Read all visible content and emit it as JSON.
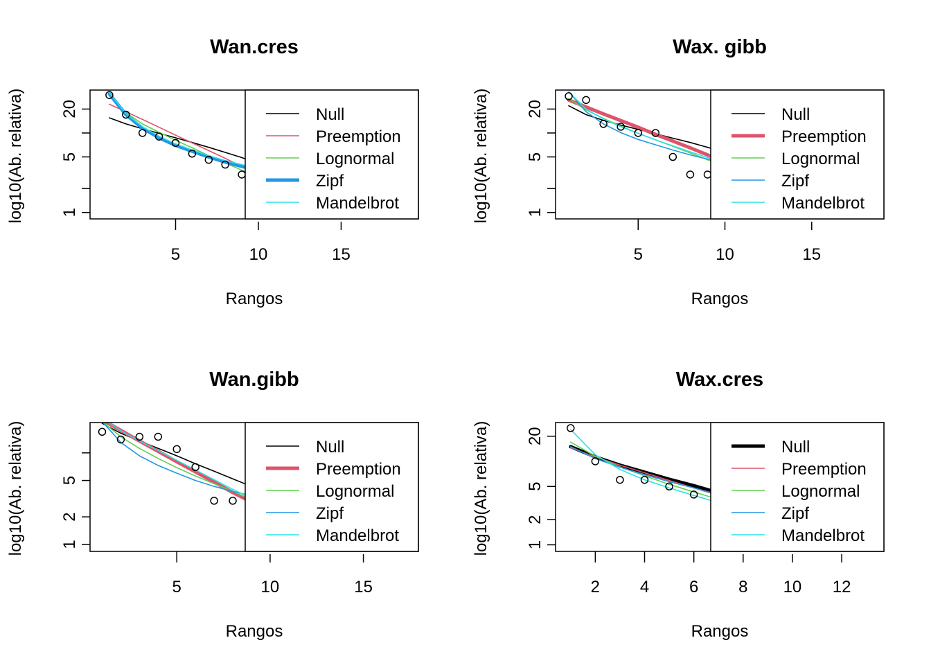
{
  "colors": {
    "Null": "#000000",
    "Preemption": "#DF536B",
    "Lognormal": "#61D04F",
    "Zipf": "#2297E6",
    "Mandelbrot": "#28E2E5"
  },
  "chart_data": [
    {
      "type": "line",
      "title": "Wan.cres",
      "xlabel": "Rangos",
      "ylabel": "log10(Ab. relativa)",
      "log_y": true,
      "xlim": [
        0,
        19.5
      ],
      "ylim": [
        0.9,
        32
      ],
      "xticks": [
        5,
        10,
        15
      ],
      "yticks": [
        1,
        2,
        5,
        10,
        20
      ],
      "yticklabels": [
        "1",
        "",
        "5",
        "",
        "20"
      ],
      "legend": [
        "Null",
        "Preemption",
        "Lognormal",
        "Zipf",
        "Mandelbrot"
      ],
      "highlight": "Zipf",
      "points": {
        "x": [
          1,
          2,
          3,
          4,
          5,
          6,
          7,
          8,
          9
        ],
        "y": [
          30,
          17,
          10,
          9,
          7.5,
          5.5,
          4.6,
          4.0,
          3.0
        ]
      },
      "series": [
        {
          "name": "Null",
          "x": [
            1,
            2,
            3,
            4,
            5,
            6,
            7,
            8,
            9,
            10
          ],
          "y": [
            15.5,
            13,
            11.3,
            9.9,
            8.7,
            7.6,
            6.6,
            5.7,
            4.9,
            4.1
          ]
        },
        {
          "name": "Preemption",
          "x": [
            1,
            2,
            3,
            4,
            5,
            6,
            7,
            8,
            9,
            10
          ],
          "y": [
            23,
            18.5,
            14.8,
            11.8,
            9.4,
            7.5,
            6.0,
            4.8,
            3.8,
            3.0
          ]
        },
        {
          "name": "Lognormal",
          "x": [
            1,
            2,
            3,
            4,
            5,
            6,
            7,
            8,
            9,
            10
          ],
          "y": [
            30,
            18,
            13,
            10.2,
            8.1,
            6.5,
            5.2,
            4.2,
            3.4,
            2.8
          ]
        },
        {
          "name": "Zipf",
          "x": [
            1,
            2,
            3,
            4,
            5,
            6,
            7,
            8,
            9,
            10
          ],
          "y": [
            31,
            17,
            11.5,
            8.7,
            7,
            5.9,
            5.0,
            4.3,
            3.8,
            3.4
          ]
        },
        {
          "name": "Mandelbrot",
          "x": [
            1,
            2,
            3,
            4,
            5,
            6,
            7,
            8,
            9,
            10
          ],
          "y": [
            32,
            17.5,
            12,
            9.1,
            7.3,
            6.1,
            5.2,
            4.5,
            4.0,
            3.5
          ]
        }
      ]
    },
    {
      "type": "line",
      "title": "Wax. gibb",
      "xlabel": "Rangos",
      "ylabel": "log10(Ab. relativa)",
      "log_y": true,
      "xlim": [
        0.4,
        19
      ],
      "ylim": [
        0.9,
        32
      ],
      "xticks": [
        5,
        10,
        15
      ],
      "yticks": [
        1,
        2,
        5,
        10,
        20
      ],
      "yticklabels": [
        "1",
        "",
        "5",
        "",
        "20"
      ],
      "legend": [
        "Null",
        "Preemption",
        "Lognormal",
        "Zipf",
        "Mandelbrot"
      ],
      "highlight": "Preemption",
      "points": {
        "x": [
          1,
          2,
          3,
          4,
          5,
          6,
          7,
          8,
          9
        ],
        "y": [
          29,
          26,
          13,
          12,
          10,
          10,
          5,
          3,
          3
        ]
      },
      "series": [
        {
          "name": "Null",
          "x": [
            1,
            2,
            3,
            4,
            5,
            6,
            7,
            8,
            9,
            10
          ],
          "y": [
            22,
            17,
            14.4,
            12.6,
            11.1,
            9.8,
            8.6,
            7.6,
            6.6,
            5.7
          ]
        },
        {
          "name": "Preemption",
          "x": [
            1,
            2,
            3,
            4,
            5,
            6,
            7,
            8,
            9,
            10
          ],
          "y": [
            26,
            21.2,
            17.4,
            14.3,
            11.8,
            9.6,
            7.9,
            6.5,
            5.3,
            4.3
          ]
        },
        {
          "name": "Lognormal",
          "x": [
            1,
            2,
            3,
            4,
            5,
            6,
            7,
            8,
            9,
            10
          ],
          "y": [
            27,
            19.5,
            15.3,
            12.2,
            9.9,
            8.2,
            6.8,
            5.6,
            4.6,
            3.8
          ]
        },
        {
          "name": "Zipf",
          "x": [
            1,
            2,
            3,
            4,
            5,
            6,
            7,
            8,
            9,
            10
          ],
          "y": [
            33,
            18.5,
            13,
            10.1,
            8.3,
            7.1,
            6.1,
            5.3,
            4.7,
            4.2
          ]
        },
        {
          "name": "Mandelbrot",
          "x": [
            1,
            2,
            3,
            4,
            5,
            6,
            7,
            8,
            9,
            10
          ],
          "y": [
            33,
            20,
            15,
            12,
            9.9,
            8.2,
            6.9,
            5.8,
            4.9,
            4.2
          ]
        }
      ]
    },
    {
      "type": "line",
      "title": "Wan.gibb",
      "xlabel": "Rangos",
      "ylabel": "log10(Ab. relativa)",
      "log_y": true,
      "xlim": [
        0.5,
        17.8
      ],
      "ylim": [
        0.9,
        20
      ],
      "xticks": [
        5,
        10,
        15
      ],
      "yticks": [
        1,
        2,
        5,
        10
      ],
      "yticklabels": [
        "1",
        "2",
        "5",
        ""
      ],
      "legend": [
        "Null",
        "Preemption",
        "Lognormal",
        "Zipf",
        "Mandelbrot"
      ],
      "highlight": "Preemption",
      "points": {
        "x": [
          1,
          2,
          3,
          4,
          5,
          6,
          7,
          8
        ],
        "y": [
          17,
          14,
          15,
          15,
          11,
          7,
          3,
          3
        ]
      },
      "series": [
        {
          "name": "Null",
          "x": [
            1,
            2,
            3,
            4,
            5,
            6,
            7,
            8,
            9
          ],
          "y": [
            21,
            16.4,
            13.5,
            11.2,
            9.3,
            7.6,
            6.3,
            5.2,
            4.3
          ]
        },
        {
          "name": "Preemption",
          "x": [
            1,
            2,
            3,
            4,
            5,
            6,
            7,
            8,
            9
          ],
          "y": [
            23,
            17.6,
            13.5,
            10.4,
            8.0,
            6.2,
            4.8,
            3.7,
            2.9
          ]
        },
        {
          "name": "Lognormal",
          "x": [
            1,
            2,
            3,
            4,
            5,
            6,
            7,
            8,
            9
          ],
          "y": [
            22,
            15,
            11.2,
            8.7,
            6.9,
            5.6,
            4.6,
            3.8,
            3.1
          ]
        },
        {
          "name": "Zipf",
          "x": [
            1,
            2,
            3,
            4,
            5,
            6,
            7,
            8,
            9
          ],
          "y": [
            22,
            13,
            9.3,
            7.3,
            6.0,
            5.0,
            4.3,
            3.8,
            3.4
          ]
        },
        {
          "name": "Mandelbrot",
          "x": [
            1,
            2,
            3,
            4,
            5,
            6,
            7,
            8,
            9
          ],
          "y": [
            24,
            17.5,
            13.5,
            10.6,
            8.3,
            6.5,
            5.1,
            4.0,
            3.2
          ]
        }
      ]
    },
    {
      "type": "line",
      "title": "Wax.cres",
      "xlabel": "Rangos",
      "ylabel": "log10(Ab. relativa)",
      "log_y": true,
      "xlim": [
        0.5,
        13.6
      ],
      "ylim": [
        0.9,
        27
      ],
      "xticks": [
        2,
        4,
        6,
        8,
        10,
        12
      ],
      "yticks": [
        1,
        2,
        5,
        20
      ],
      "yticklabels": [
        "1",
        "2",
        "5",
        "20"
      ],
      "legend": [
        "Null",
        "Preemption",
        "Lognormal",
        "Zipf",
        "Mandelbrot"
      ],
      "highlight": "Null",
      "points": {
        "x": [
          1,
          2,
          3,
          4,
          5,
          6
        ],
        "y": [
          25,
          10,
          6,
          6,
          5,
          4
        ]
      },
      "series": [
        {
          "name": "Null",
          "x": [
            1,
            2,
            3,
            4,
            5,
            6,
            7
          ],
          "y": [
            15,
            11.3,
            9.0,
            7.4,
            6.1,
            5.1,
            4.2
          ]
        },
        {
          "name": "Preemption",
          "x": [
            1,
            2,
            3,
            4,
            5,
            6,
            7
          ],
          "y": [
            14.5,
            11.3,
            9.0,
            7.3,
            5.9,
            4.8,
            3.9
          ]
        },
        {
          "name": "Lognormal",
          "x": [
            1,
            2,
            3,
            4,
            5,
            6,
            7
          ],
          "y": [
            17,
            11.5,
            8.6,
            6.7,
            5.3,
            4.3,
            3.5
          ]
        },
        {
          "name": "Zipf",
          "x": [
            1,
            2,
            3,
            4,
            5,
            6,
            7
          ],
          "y": [
            15,
            10.8,
            8.5,
            6.9,
            5.7,
            4.8,
            4.0
          ]
        },
        {
          "name": "Mandelbrot",
          "x": [
            1,
            2,
            3,
            4,
            5,
            6,
            7
          ],
          "y": [
            24,
            12,
            8,
            6,
            4.8,
            3.9,
            3.2
          ]
        }
      ]
    }
  ]
}
